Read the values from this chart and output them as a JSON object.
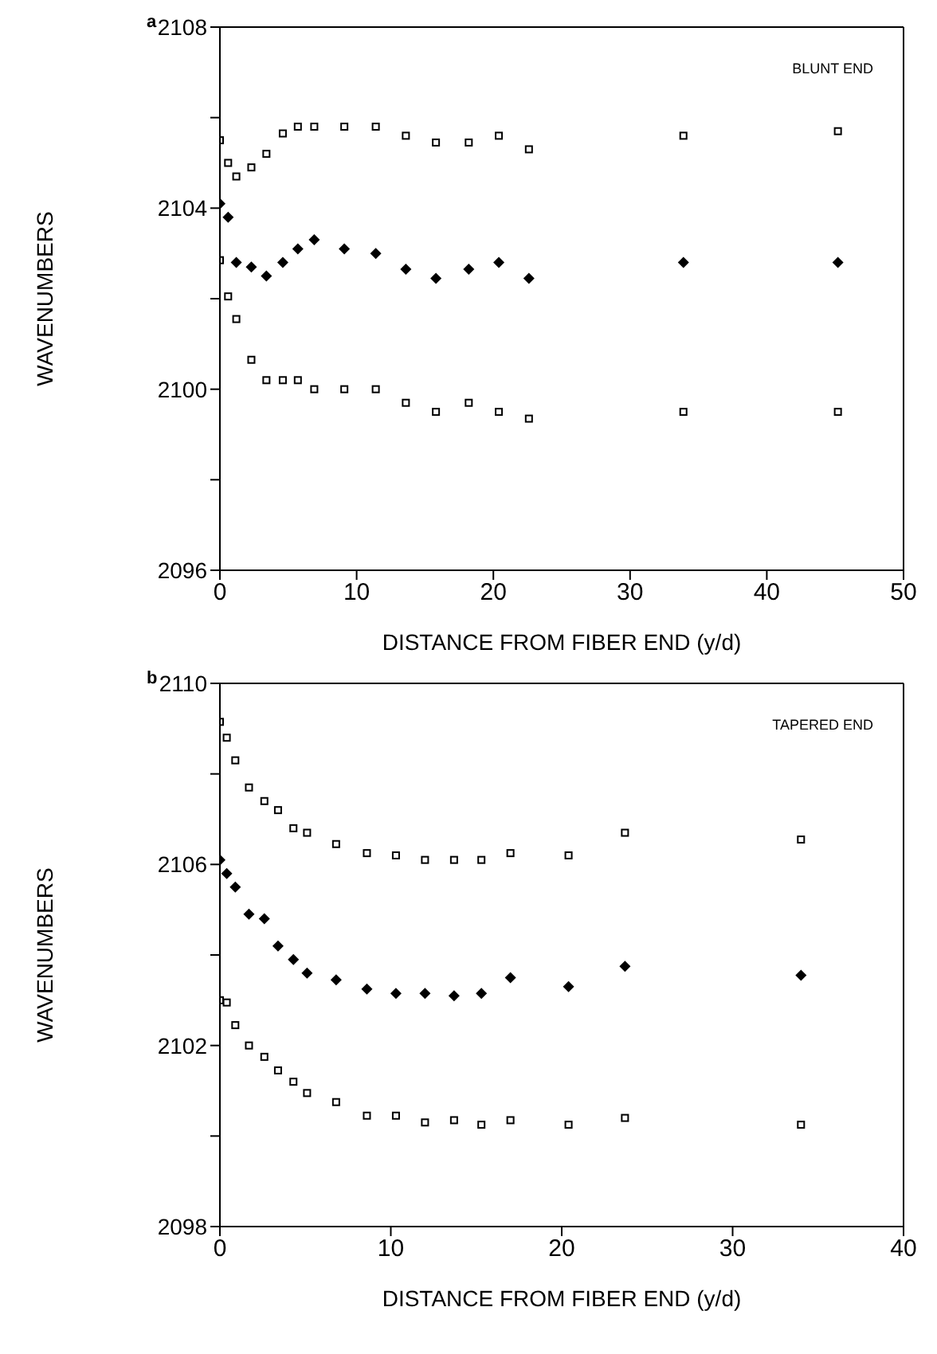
{
  "chart_data": [
    {
      "type": "scatter",
      "annotations": [
        "a",
        "BLUNT END"
      ],
      "xlabel": "DISTANCE FROM FIBER END (y/d)",
      "ylabel": "WAVENUMBERS",
      "xlim": [
        0,
        50
      ],
      "xticks": [
        0,
        10,
        20,
        30,
        40,
        50
      ],
      "ylim": [
        2096,
        2108
      ],
      "yticks": [
        2096,
        {
          "value": 2098,
          "label": null
        },
        2100,
        {
          "value": 2102,
          "label": null
        },
        2104,
        {
          "value": 2106,
          "label": null
        },
        2108
      ],
      "x": [
        0,
        0.6,
        1.2,
        2.3,
        3.4,
        4.6,
        5.7,
        6.9,
        9.1,
        11.4,
        13.6,
        15.8,
        18.2,
        20.4,
        22.6,
        33.9,
        45.2
      ],
      "series": [
        {
          "color": "#000000",
          "marker": "square",
          "values": [
            2105.5,
            2105.0,
            2104.7,
            2104.9,
            2105.2,
            2105.65,
            2105.8,
            2105.8,
            2105.8,
            2105.8,
            2105.6,
            2105.45,
            2105.45,
            2105.6,
            2105.3,
            2105.6,
            2105.7
          ]
        },
        {
          "color": "#000000",
          "marker": "diamond",
          "values": [
            2104.1,
            2103.8,
            2102.8,
            2102.7,
            2102.5,
            2102.8,
            2103.1,
            2103.3,
            2103.1,
            2103.0,
            2102.65,
            2102.45,
            2102.65,
            2102.8,
            2102.45,
            2102.8,
            2102.8
          ]
        },
        {
          "color": "#000000",
          "marker": "square",
          "values": [
            2102.85,
            2102.05,
            2101.55,
            2100.65,
            2100.2,
            2100.2,
            2100.2,
            2100.0,
            2100.0,
            2100.0,
            2099.7,
            2099.5,
            2099.7,
            2099.5,
            2099.35,
            2099.5,
            2099.5
          ]
        }
      ]
    },
    {
      "type": "scatter",
      "annotations": [
        "b",
        "TAPERED END"
      ],
      "xlabel": "DISTANCE FROM FIBER END (y/d)",
      "ylabel": "WAVENUMBERS",
      "xlim": [
        0,
        40
      ],
      "xticks": [
        0,
        10,
        20,
        30,
        40
      ],
      "ylim": [
        2098,
        2110
      ],
      "yticks": [
        2098,
        {
          "value": 2100,
          "label": null
        },
        2102,
        {
          "value": 2104,
          "label": null
        },
        2106,
        {
          "value": 2108,
          "label": null
        },
        2110
      ],
      "x": [
        0,
        0.4,
        0.9,
        1.7,
        2.6,
        3.4,
        4.3,
        5.1,
        6.8,
        8.6,
        10.3,
        12.0,
        13.7,
        15.3,
        17.0,
        20.4,
        23.7,
        34.0
      ],
      "series": [
        {
          "color": "#000000",
          "marker": "square",
          "values": [
            2109.15,
            2108.8,
            2108.3,
            2107.7,
            2107.4,
            2107.2,
            2106.8,
            2106.7,
            2106.45,
            2106.25,
            2106.2,
            2106.1,
            2106.1,
            2106.1,
            2106.25,
            2106.2,
            2106.7,
            2106.55
          ]
        },
        {
          "color": "#000000",
          "marker": "diamond",
          "values": [
            2106.1,
            2105.8,
            2105.5,
            2104.9,
            2104.8,
            2104.2,
            2103.9,
            2103.6,
            2103.45,
            2103.25,
            2103.15,
            2103.15,
            2103.1,
            2103.15,
            2103.5,
            2103.3,
            2103.75,
            2103.55
          ]
        },
        {
          "color": "#000000",
          "marker": "square",
          "values": [
            2103.0,
            2102.95,
            2102.45,
            2102.0,
            2101.75,
            2101.45,
            2101.2,
            2100.95,
            2100.75,
            2100.45,
            2100.45,
            2100.3,
            2100.35,
            2100.25,
            2100.35,
            2100.25,
            2100.4,
            2100.25
          ]
        }
      ]
    }
  ]
}
